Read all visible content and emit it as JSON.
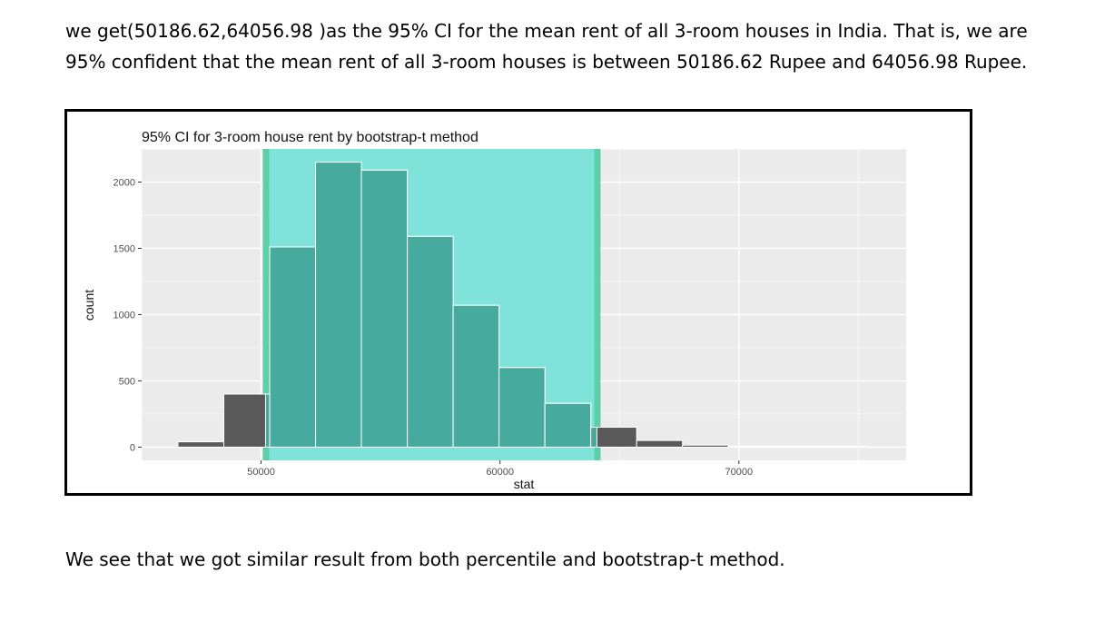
{
  "document": {
    "paragraph1": "we get(50186.62,64056.98 )as the 95% CI for the mean rent of all 3-room houses in India. That is, we are 95% confident that the mean rent of all 3-room houses is between 50186.62 Rupee and  64056.98 Rupee.",
    "paragraph2": "We see that we got similar result from both percentile and bootstrap-t method."
  },
  "chart_data": {
    "type": "bar",
    "title": "95% CI for 3-room house rent  by bootstrap-t method",
    "xlabel": "stat",
    "ylabel": "count",
    "xlim": [
      45000,
      77000
    ],
    "ylim": [
      -100,
      2250
    ],
    "x_ticks": [
      50000,
      60000,
      70000
    ],
    "x_tick_labels": [
      "50000",
      "60000",
      "70000"
    ],
    "y_ticks": [
      0,
      500,
      1000,
      1500,
      2000
    ],
    "y_tick_labels": [
      "0",
      "500",
      "1000",
      "1500",
      "2000"
    ],
    "grid": true,
    "bins": [
      {
        "x0": 46520,
        "x1": 48440,
        "count": 40
      },
      {
        "x0": 48440,
        "x1": 50360,
        "count": 400
      },
      {
        "x0": 50360,
        "x1": 52280,
        "count": 1510
      },
      {
        "x0": 52280,
        "x1": 54200,
        "count": 2150
      },
      {
        "x0": 54200,
        "x1": 56120,
        "count": 2090
      },
      {
        "x0": 56120,
        "x1": 58040,
        "count": 1590
      },
      {
        "x0": 58040,
        "x1": 59960,
        "count": 1070
      },
      {
        "x0": 59960,
        "x1": 61880,
        "count": 600
      },
      {
        "x0": 61880,
        "x1": 63800,
        "count": 330
      },
      {
        "x0": 63800,
        "x1": 65720,
        "count": 150
      },
      {
        "x0": 65720,
        "x1": 67640,
        "count": 50
      },
      {
        "x0": 67640,
        "x1": 69560,
        "count": 15
      },
      {
        "x0": 69560,
        "x1": 71480,
        "count": 5
      },
      {
        "x0": 71480,
        "x1": 73400,
        "count": 2
      },
      {
        "x0": 73400,
        "x1": 75320,
        "count": 1
      }
    ],
    "ci": {
      "lower": 50186.62,
      "upper": 64056.98
    },
    "colors": {
      "panel": "#ebebeb",
      "grid": "#ffffff",
      "bar": "#595959",
      "bar_in_ci": "#47aa9e",
      "ci_fill": "#7fe3db",
      "ci_edge": "#5dcfa8"
    }
  }
}
